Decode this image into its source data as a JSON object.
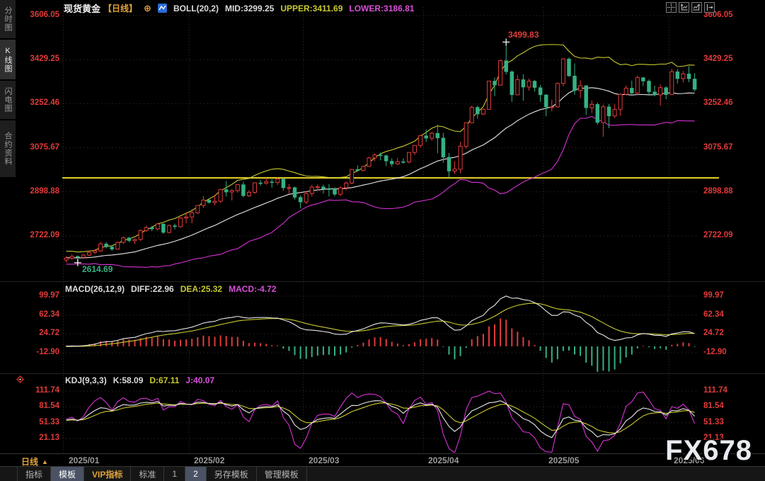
{
  "watermark": "FX678",
  "header": {
    "symbol": "现货黄金",
    "period": "【日线】",
    "zoom_glyph": "⊕",
    "boll_label": "BOLL(20,2)",
    "mid_text": "MID:3299.25",
    "upper_text": "UPPER:3411.69",
    "lower_text": "LOWER:3186.81"
  },
  "macd_header": {
    "label": "MACD(26,12,9)",
    "diff_text": "DIFF:22.96",
    "dea_text": "DEA:25.32",
    "macd_text": "MACD:-4.72"
  },
  "kdj_header": {
    "label": "KDJ(9,3,3)",
    "k_text": "K:58.09",
    "d_text": "D:67.11",
    "j_text": "J:40.07"
  },
  "sidebar": {
    "items": [
      {
        "label": "分时图",
        "selected": false
      },
      {
        "label": "K线图",
        "selected": true
      },
      {
        "label": "闪电图",
        "selected": false
      },
      {
        "label": "合约资料",
        "selected": false
      }
    ]
  },
  "xaxis": {
    "period": "日线",
    "dropdown_glyph": "▲"
  },
  "toolbar": {
    "items": [
      {
        "label": "指标",
        "selected": false,
        "vip": false
      },
      {
        "label": "模板",
        "selected": true,
        "vip": false
      },
      {
        "label": "VIP指标",
        "selected": false,
        "vip": true
      },
      {
        "label": "标准",
        "selected": false,
        "vip": false
      },
      {
        "label": "1",
        "selected": false,
        "vip": false
      },
      {
        "label": "2",
        "selected": true,
        "vip": false
      },
      {
        "label": "另存模板",
        "selected": false,
        "vip": false
      },
      {
        "label": "管理模板",
        "selected": false,
        "vip": false
      }
    ]
  },
  "colors": {
    "up": "#e23b3b",
    "down": "#35b183",
    "axis_label": "#e23a3a",
    "boll_mid": "#e8e8e8",
    "boll_upper": "#c9c930",
    "boll_lower": "#d633d6",
    "diff_line": "#e8e8e8",
    "dea_line": "#c9c930",
    "k_line": "#e8e8e8",
    "d_line": "#c9c930",
    "j_line": "#d633d6",
    "price_line": "#e6d52c",
    "grid_h": "#4d2a2a",
    "grid_v": "#333333",
    "annotation_high": "#e23b3b",
    "annotation_low": "#35b183",
    "cross": "#ffffff"
  },
  "chart_data": [
    {
      "type": "candlestick",
      "title": "现货黄金 日线",
      "indicator": "BOLL(20,2)",
      "boll": {
        "period": 20,
        "mult": 2,
        "mid": 3299.25,
        "upper": 3411.69,
        "lower": 3186.81
      },
      "yticks": [
        3606.05,
        3429.25,
        3252.46,
        3075.67,
        2898.88,
        2722.09
      ],
      "x_labels": [
        {
          "label": "2025/01",
          "bar": 0
        },
        {
          "label": "2025/02",
          "bar": 22
        },
        {
          "label": "2025/03",
          "bar": 42
        },
        {
          "label": "2025/04",
          "bar": 63
        },
        {
          "label": "2025/05",
          "bar": 84
        },
        {
          "label": "2025/06",
          "bar": 106
        }
      ],
      "price_line": 2955.0,
      "annotations": [
        {
          "label": "3499.83",
          "bar": 77,
          "price": 3499.83,
          "type": "high"
        },
        {
          "label": "2614.69",
          "bar": 2,
          "price": 2614.69,
          "type": "low"
        }
      ],
      "ohlc": [
        [
          2625,
          2641,
          2615,
          2633
        ],
        [
          2633,
          2648,
          2626,
          2640
        ],
        [
          2640,
          2644,
          2614.69,
          2636
        ],
        [
          2636,
          2650,
          2630,
          2645
        ],
        [
          2645,
          2663,
          2640,
          2656
        ],
        [
          2656,
          2668,
          2649,
          2662
        ],
        [
          2662,
          2698,
          2658,
          2690
        ],
        [
          2690,
          2697,
          2672,
          2678
        ],
        [
          2678,
          2684,
          2662,
          2669
        ],
        [
          2669,
          2700,
          2666,
          2696
        ],
        [
          2696,
          2719,
          2690,
          2714
        ],
        [
          2714,
          2718,
          2697,
          2703
        ],
        [
          2703,
          2712,
          2689,
          2708
        ],
        [
          2708,
          2748,
          2702,
          2744
        ],
        [
          2744,
          2763,
          2738,
          2756
        ],
        [
          2756,
          2762,
          2741,
          2750
        ],
        [
          2750,
          2773,
          2744,
          2770
        ],
        [
          2770,
          2772,
          2730,
          2736
        ],
        [
          2736,
          2768,
          2732,
          2763
        ],
        [
          2763,
          2771,
          2748,
          2759
        ],
        [
          2759,
          2798,
          2755,
          2794
        ],
        [
          2794,
          2817,
          2772,
          2798
        ],
        [
          2798,
          2830,
          2772,
          2815
        ],
        [
          2815,
          2845,
          2809,
          2844
        ],
        [
          2844,
          2882,
          2834,
          2866
        ],
        [
          2866,
          2873,
          2852,
          2856
        ],
        [
          2856,
          2886,
          2845,
          2861
        ],
        [
          2861,
          2911,
          2855,
          2908
        ],
        [
          2908,
          2942,
          2880,
          2898
        ],
        [
          2898,
          2910,
          2864,
          2904
        ],
        [
          2904,
          2930,
          2895,
          2928
        ],
        [
          2928,
          2940,
          2877,
          2883
        ],
        [
          2883,
          2906,
          2878,
          2897
        ],
        [
          2897,
          2937,
          2890,
          2935
        ],
        [
          2935,
          2946,
          2924,
          2933
        ],
        [
          2933,
          2954,
          2928,
          2939
        ],
        [
          2939,
          2950,
          2916,
          2936
        ],
        [
          2936,
          2956,
          2926,
          2951
        ],
        [
          2951,
          2956,
          2903,
          2915
        ],
        [
          2915,
          2930,
          2892,
          2916
        ],
        [
          2916,
          2920,
          2868,
          2877
        ],
        [
          2877,
          2885,
          2832,
          2858
        ],
        [
          2858,
          2902,
          2850,
          2892
        ],
        [
          2892,
          2927,
          2880,
          2918
        ],
        [
          2918,
          2929,
          2905,
          2919
        ],
        [
          2919,
          2928,
          2892,
          2911
        ],
        [
          2911,
          2930,
          2880,
          2910
        ],
        [
          2910,
          2918,
          2881,
          2889
        ],
        [
          2889,
          2922,
          2882,
          2915
        ],
        [
          2915,
          2940,
          2905,
          2934
        ],
        [
          2934,
          2990,
          2930,
          2989
        ],
        [
          2989,
          3005,
          2980,
          2984
        ],
        [
          2984,
          3004,
          2982,
          3001
        ],
        [
          3001,
          3039,
          2999,
          3035
        ],
        [
          3035,
          3052,
          3022,
          3047
        ],
        [
          3047,
          3057,
          3025,
          3044
        ],
        [
          3044,
          3048,
          3002,
          3022
        ],
        [
          3022,
          3033,
          3000,
          3011
        ],
        [
          3011,
          3036,
          3006,
          3020
        ],
        [
          3020,
          3033,
          3012,
          3019
        ],
        [
          3019,
          3059,
          3013,
          3057
        ],
        [
          3057,
          3086,
          3046,
          3085
        ],
        [
          3085,
          3128,
          3076,
          3124
        ],
        [
          3124,
          3149,
          3100,
          3114
        ],
        [
          3114,
          3140,
          3104,
          3134
        ],
        [
          3134,
          3168,
          3054,
          3115
        ],
        [
          3115,
          3136,
          3015,
          3038
        ],
        [
          3038,
          3055,
          2957,
          2982
        ],
        [
          2982,
          3022,
          2970,
          2990
        ],
        [
          2990,
          3100,
          2973,
          3082
        ],
        [
          3082,
          3176,
          3071,
          3176
        ],
        [
          3176,
          3245,
          3176,
          3238
        ],
        [
          3238,
          3245,
          3193,
          3211
        ],
        [
          3211,
          3233,
          3207,
          3230
        ],
        [
          3230,
          3343,
          3229,
          3343
        ],
        [
          3343,
          3357,
          3283,
          3327
        ],
        [
          3327,
          3430,
          3327,
          3425
        ],
        [
          3425,
          3499.83,
          3370,
          3381
        ],
        [
          3381,
          3386,
          3260,
          3288
        ],
        [
          3288,
          3367,
          3287,
          3349
        ],
        [
          3349,
          3371,
          3265,
          3319
        ],
        [
          3319,
          3353,
          3305,
          3343
        ],
        [
          3343,
          3348,
          3301,
          3317
        ],
        [
          3317,
          3328,
          3260,
          3288
        ],
        [
          3288,
          3290,
          3202,
          3239
        ],
        [
          3239,
          3269,
          3222,
          3240
        ],
        [
          3240,
          3337,
          3237,
          3334
        ],
        [
          3334,
          3435,
          3322,
          3432
        ],
        [
          3432,
          3438,
          3360,
          3364
        ],
        [
          3364,
          3414,
          3288,
          3305
        ],
        [
          3305,
          3347,
          3275,
          3325
        ],
        [
          3325,
          3325,
          3207,
          3236
        ],
        [
          3236,
          3266,
          3215,
          3250
        ],
        [
          3250,
          3257,
          3168,
          3177
        ],
        [
          3177,
          3249,
          3120,
          3240
        ],
        [
          3240,
          3252,
          3154,
          3203
        ],
        [
          3203,
          3250,
          3196,
          3230
        ],
        [
          3230,
          3295,
          3204,
          3290
        ],
        [
          3290,
          3325,
          3285,
          3315
        ],
        [
          3315,
          3345,
          3285,
          3295
        ],
        [
          3295,
          3366,
          3287,
          3357
        ],
        [
          3357,
          3360,
          3323,
          3343
        ],
        [
          3343,
          3350,
          3285,
          3300
        ],
        [
          3300,
          3325,
          3282,
          3288
        ],
        [
          3288,
          3330,
          3245,
          3317
        ],
        [
          3317,
          3322,
          3270,
          3289
        ],
        [
          3289,
          3392,
          3288,
          3381
        ],
        [
          3381,
          3392,
          3333,
          3353
        ],
        [
          3353,
          3384,
          3338,
          3372
        ],
        [
          3372,
          3403,
          3339,
          3352
        ],
        [
          3352,
          3375,
          3302,
          3310
        ]
      ]
    },
    {
      "type": "macd",
      "label": "MACD(26,12,9)",
      "params": [
        26,
        12,
        9
      ],
      "diff": 22.96,
      "dea": 25.32,
      "macd": -4.72,
      "yticks": [
        99.97,
        62.34,
        24.72,
        -12.9
      ]
    },
    {
      "type": "kdj",
      "label": "KDJ(9,3,3)",
      "params": [
        9,
        3,
        3
      ],
      "k": 58.09,
      "d": 67.11,
      "j": 40.07,
      "yticks": [
        111.74,
        81.54,
        51.33,
        21.13
      ]
    }
  ]
}
